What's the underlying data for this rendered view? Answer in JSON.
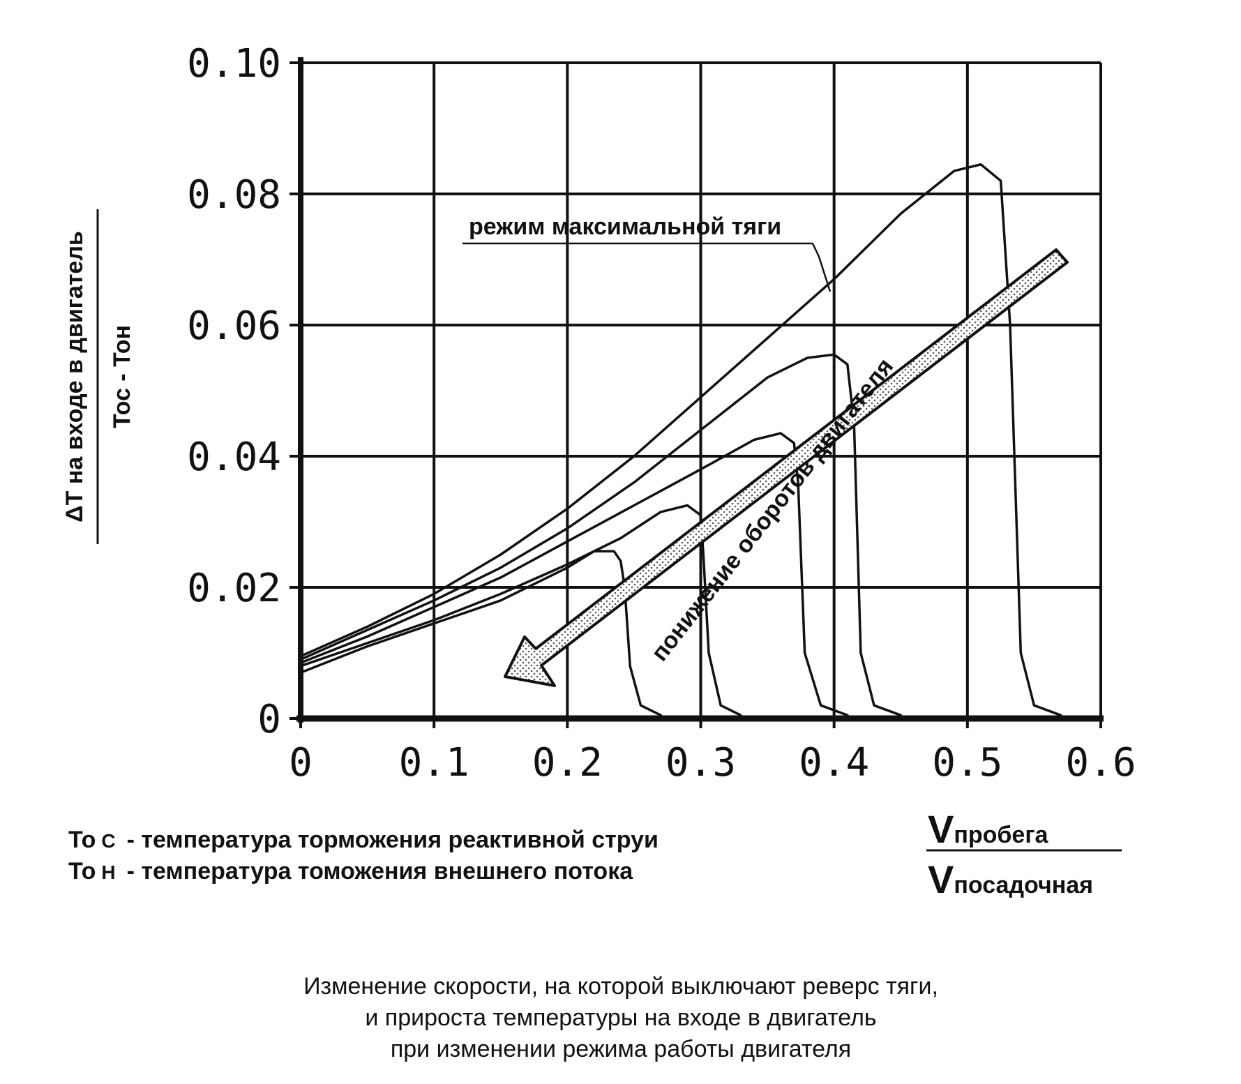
{
  "chart_data": {
    "type": "line",
    "xlim": [
      0,
      0.6
    ],
    "ylim": [
      0,
      0.1
    ],
    "x_ticks": [
      "0",
      "0.1",
      "0.2",
      "0.3",
      "0.4",
      "0.5",
      "0.6"
    ],
    "y_ticks": [
      "0",
      "0.02",
      "0.04",
      "0.06",
      "0.08",
      "0.10"
    ],
    "grid": true,
    "ylabel_numerator": "ΔT на входе в двигатель",
    "ylabel_denominator": "Тос - Тон",
    "xlabel_numerator_V": "V",
    "xlabel_numerator_sub": "пробега",
    "xlabel_denominator_V": "V",
    "xlabel_denominator_sub": "посадочная",
    "series": [
      {
        "x": [
          0,
          0.05,
          0.1,
          0.15,
          0.2,
          0.25,
          0.3,
          0.35,
          0.4,
          0.45,
          0.49,
          0.51,
          0.525,
          0.532,
          0.54,
          0.55,
          0.57
        ],
        "y": [
          0.0095,
          0.014,
          0.019,
          0.025,
          0.032,
          0.04,
          0.049,
          0.058,
          0.067,
          0.077,
          0.0835,
          0.0845,
          0.082,
          0.06,
          0.01,
          0.002,
          0.0005
        ]
      },
      {
        "x": [
          0,
          0.05,
          0.1,
          0.15,
          0.2,
          0.25,
          0.3,
          0.35,
          0.38,
          0.4,
          0.41,
          0.415,
          0.42,
          0.43,
          0.45
        ],
        "y": [
          0.009,
          0.0135,
          0.018,
          0.023,
          0.029,
          0.036,
          0.044,
          0.052,
          0.055,
          0.0555,
          0.054,
          0.045,
          0.01,
          0.002,
          0.0005
        ]
      },
      {
        "x": [
          0,
          0.05,
          0.1,
          0.15,
          0.2,
          0.25,
          0.3,
          0.34,
          0.36,
          0.37,
          0.373,
          0.378,
          0.39,
          0.41
        ],
        "y": [
          0.0085,
          0.0125,
          0.017,
          0.0215,
          0.027,
          0.0325,
          0.038,
          0.0425,
          0.0435,
          0.042,
          0.036,
          0.01,
          0.002,
          0.0005
        ]
      },
      {
        "x": [
          0,
          0.05,
          0.1,
          0.15,
          0.2,
          0.24,
          0.27,
          0.29,
          0.3,
          0.302,
          0.306,
          0.315,
          0.33
        ],
        "y": [
          0.008,
          0.0115,
          0.015,
          0.019,
          0.0235,
          0.0275,
          0.0315,
          0.0325,
          0.031,
          0.025,
          0.01,
          0.002,
          0.0005
        ]
      },
      {
        "x": [
          0,
          0.05,
          0.1,
          0.15,
          0.2,
          0.22,
          0.235,
          0.24,
          0.243,
          0.247,
          0.255,
          0.27
        ],
        "y": [
          0.007,
          0.011,
          0.0145,
          0.018,
          0.023,
          0.0255,
          0.0255,
          0.024,
          0.02,
          0.008,
          0.002,
          0.0005
        ]
      }
    ],
    "annotations": {
      "max_thrust": "режим максимальной тяги",
      "arrow": "понижение оборотов двигателя"
    }
  },
  "legend": {
    "line1_symbol": "То",
    "line1_sub": "С",
    "line1_text": "- температура торможения реактивной струи",
    "line2_symbol": "То",
    "line2_sub": "Н",
    "line2_text": "- температура томожения внешнего потока"
  },
  "caption": {
    "line1": "Изменение скорости, на которой выключают реверс тяги,",
    "line2": "и прироста температуры на входе в двигатель",
    "line3": "при изменении режима работы двигателя"
  }
}
